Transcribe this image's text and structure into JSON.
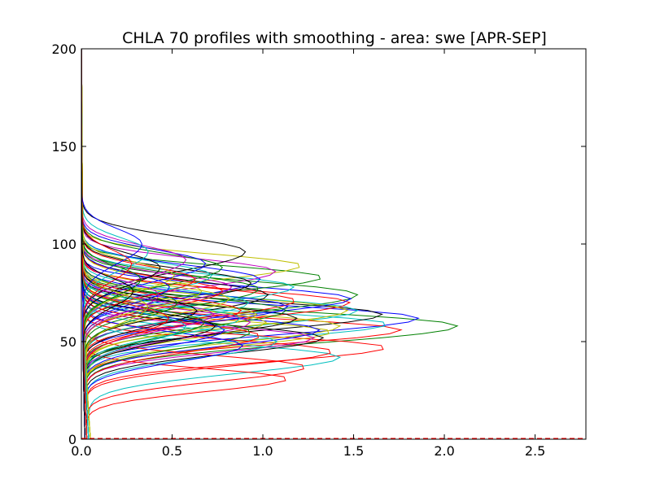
{
  "chart_data": {
    "type": "line",
    "title": "CHLA 70 profiles with smoothing - area: swe [APR-SEP]",
    "xlabel": "",
    "ylabel": "",
    "xlim": [
      0,
      2.78
    ],
    "ylim": [
      0,
      200
    ],
    "x_ticks": [
      0.0,
      0.5,
      1.0,
      1.5,
      2.0,
      2.5
    ],
    "x_tick_labels": [
      "0.0",
      "0.5",
      "1.0",
      "1.5",
      "2.0",
      "2.5"
    ],
    "y_ticks": [
      0,
      50,
      100,
      150,
      200
    ],
    "y_tick_labels": [
      "0",
      "50",
      "100",
      "150",
      "200"
    ],
    "grid": false,
    "legend": "none",
    "profile_count": 70,
    "palette": [
      "#0000ff",
      "#008000",
      "#ff0000",
      "#00bfbf",
      "#bf00bf",
      "#bfbf00",
      "#000000"
    ],
    "series": [
      {
        "color": "#008000",
        "peak_x": 2.09,
        "peak_y": 58,
        "width": 11,
        "base": 0.03
      },
      {
        "color": "#0000ff",
        "peak_x": 1.87,
        "peak_y": 62,
        "width": 10,
        "base": 0.02
      },
      {
        "color": "#ff0000",
        "peak_x": 1.78,
        "peak_y": 56,
        "width": 9,
        "base": 0.03
      },
      {
        "color": "#00bfbf",
        "peak_x": 1.72,
        "peak_y": 59,
        "width": 9,
        "base": 0.05
      },
      {
        "color": "#ff0000",
        "peak_x": 1.7,
        "peak_y": 47,
        "width": 9,
        "base": 0.04
      },
      {
        "color": "#000000",
        "peak_x": 1.67,
        "peak_y": 64,
        "width": 10,
        "base": 0.02
      },
      {
        "color": "#008000",
        "peak_x": 1.55,
        "peak_y": 74,
        "width": 11,
        "base": 0.04
      },
      {
        "color": "#00bfbf",
        "peak_x": 1.55,
        "peak_y": 66,
        "width": 10,
        "base": 0.04
      },
      {
        "color": "#ff0000",
        "peak_x": 1.5,
        "peak_y": 70,
        "width": 10,
        "base": 0.03
      },
      {
        "color": "#bfbf00",
        "peak_x": 1.5,
        "peak_y": 66,
        "width": 10,
        "base": 0.05
      },
      {
        "color": "#0000ff",
        "peak_x": 1.5,
        "peak_y": 72,
        "width": 10,
        "base": 0.02
      },
      {
        "color": "#00bfbf",
        "peak_x": 1.45,
        "peak_y": 42,
        "width": 10,
        "base": 0.05
      },
      {
        "color": "#bfbf00",
        "peak_x": 1.45,
        "peak_y": 58,
        "width": 10,
        "base": 0.04
      },
      {
        "color": "#ff0000",
        "peak_x": 1.4,
        "peak_y": 45,
        "width": 9,
        "base": 0.03
      },
      {
        "color": "#008000",
        "peak_x": 1.35,
        "peak_y": 83,
        "width": 9,
        "base": 0.03
      },
      {
        "color": "#bfbf00",
        "peak_x": 1.4,
        "peak_y": 55,
        "width": 9,
        "base": 0.04
      },
      {
        "color": "#000000",
        "peak_x": 1.35,
        "peak_y": 52,
        "width": 10,
        "base": 0.03
      },
      {
        "color": "#0000ff",
        "peak_x": 1.33,
        "peak_y": 56,
        "width": 10,
        "base": 0.03
      },
      {
        "color": "#bf00bf",
        "peak_x": 1.3,
        "peak_y": 52,
        "width": 9,
        "base": 0.03
      },
      {
        "color": "#ff0000",
        "peak_x": 1.25,
        "peak_y": 37,
        "width": 9,
        "base": 0.03
      },
      {
        "color": "#bfbf00",
        "peak_x": 1.25,
        "peak_y": 89,
        "width": 9,
        "base": 0.05
      },
      {
        "color": "#ff0000",
        "peak_x": 1.2,
        "peak_y": 71,
        "width": 10,
        "base": 0.03
      },
      {
        "color": "#00bfbf",
        "peak_x": 1.2,
        "peak_y": 78,
        "width": 10,
        "base": 0.04
      },
      {
        "color": "#000000",
        "peak_x": 1.2,
        "peak_y": 62,
        "width": 10,
        "base": 0.02
      },
      {
        "color": "#0000ff",
        "peak_x": 1.15,
        "peak_y": 68,
        "width": 10,
        "base": 0.02
      },
      {
        "color": "#ff0000",
        "peak_x": 1.15,
        "peak_y": 31,
        "width": 8,
        "base": 0.03
      },
      {
        "color": "#008000",
        "peak_x": 1.15,
        "peak_y": 66,
        "width": 10,
        "base": 0.03
      },
      {
        "color": "#bf00bf",
        "peak_x": 1.1,
        "peak_y": 86,
        "width": 10,
        "base": 0.04
      },
      {
        "color": "#00bfbf",
        "peak_x": 1.1,
        "peak_y": 50,
        "width": 10,
        "base": 0.04
      },
      {
        "color": "#000000",
        "peak_x": 1.05,
        "peak_y": 74,
        "width": 11,
        "base": 0.03
      },
      {
        "color": "#bfbf00",
        "peak_x": 1.05,
        "peak_y": 60,
        "width": 10,
        "base": 0.05
      },
      {
        "color": "#0000ff",
        "peak_x": 1.0,
        "peak_y": 82,
        "width": 11,
        "base": 0.02
      },
      {
        "color": "#bfbf00",
        "peak_x": 1.0,
        "peak_y": 64,
        "width": 10,
        "base": 0.05
      },
      {
        "color": "#008000",
        "peak_x": 1.0,
        "peak_y": 77,
        "width": 11,
        "base": 0.03
      },
      {
        "color": "#ff0000",
        "peak_x": 1.0,
        "peak_y": 53,
        "width": 10,
        "base": 0.03
      },
      {
        "color": "#00bfbf",
        "peak_x": 0.95,
        "peak_y": 70,
        "width": 10,
        "base": 0.04
      },
      {
        "color": "#bf00bf",
        "peak_x": 0.95,
        "peak_y": 60,
        "width": 10,
        "base": 0.03
      },
      {
        "color": "#008000",
        "peak_x": 0.95,
        "peak_y": 55,
        "width": 10,
        "base": 0.03
      },
      {
        "color": "#000000",
        "peak_x": 0.95,
        "peak_y": 80,
        "width": 11,
        "base": 0.02
      },
      {
        "color": "#0000ff",
        "peak_x": 0.9,
        "peak_y": 48,
        "width": 10,
        "base": 0.02
      },
      {
        "color": "#00bfbf",
        "peak_x": 0.9,
        "peak_y": 62,
        "width": 10,
        "base": 0.04
      },
      {
        "color": "#ff0000",
        "peak_x": 0.9,
        "peak_y": 66,
        "width": 10,
        "base": 0.03
      },
      {
        "color": "#000000",
        "peak_x": 0.92,
        "peak_y": 96,
        "width": 12,
        "base": 0.02
      },
      {
        "color": "#bfbf00",
        "peak_x": 0.85,
        "peak_y": 72,
        "width": 10,
        "base": 0.05
      },
      {
        "color": "#bf00bf",
        "peak_x": 0.85,
        "peak_y": 78,
        "width": 10,
        "base": 0.03
      },
      {
        "color": "#0000ff",
        "peak_x": 0.8,
        "peak_y": 56,
        "width": 10,
        "base": 0.02
      },
      {
        "color": "#008000",
        "peak_x": 0.8,
        "peak_y": 88,
        "width": 11,
        "base": 0.03
      },
      {
        "color": "#ff0000",
        "peak_x": 0.8,
        "peak_y": 76,
        "width": 10,
        "base": 0.03
      },
      {
        "color": "#000000",
        "peak_x": 0.75,
        "peak_y": 58,
        "width": 10,
        "base": 0.02
      },
      {
        "color": "#00bfbf",
        "peak_x": 0.75,
        "peak_y": 84,
        "width": 10,
        "base": 0.04
      },
      {
        "color": "#bf00bf",
        "peak_x": 0.75,
        "peak_y": 64,
        "width": 10,
        "base": 0.03
      },
      {
        "color": "#bfbf00",
        "peak_x": 0.7,
        "peak_y": 76,
        "width": 10,
        "base": 0.05
      },
      {
        "color": "#008000",
        "peak_x": 0.7,
        "peak_y": 60,
        "width": 10,
        "base": 0.03
      },
      {
        "color": "#0000ff",
        "peak_x": 0.7,
        "peak_y": 90,
        "width": 11,
        "base": 0.02
      },
      {
        "color": "#ff0000",
        "peak_x": 0.65,
        "peak_y": 82,
        "width": 10,
        "base": 0.03
      },
      {
        "color": "#000000",
        "peak_x": 0.65,
        "peak_y": 66,
        "width": 10,
        "base": 0.02
      },
      {
        "color": "#bf00bf",
        "peak_x": 0.6,
        "peak_y": 92,
        "width": 11,
        "base": 0.03
      },
      {
        "color": "#00bfbf",
        "peak_x": 0.6,
        "peak_y": 58,
        "width": 10,
        "base": 0.04
      },
      {
        "color": "#bfbf00",
        "peak_x": 0.55,
        "peak_y": 84,
        "width": 10,
        "base": 0.05
      },
      {
        "color": "#008000",
        "peak_x": 0.55,
        "peak_y": 70,
        "width": 10,
        "base": 0.03
      },
      {
        "color": "#0000ff",
        "peak_x": 0.5,
        "peak_y": 78,
        "width": 10,
        "base": 0.02
      },
      {
        "color": "#ff0000",
        "peak_x": 0.5,
        "peak_y": 62,
        "width": 10,
        "base": 0.03
      },
      {
        "color": "#000000",
        "peak_x": 0.45,
        "peak_y": 88,
        "width": 11,
        "base": 0.02
      },
      {
        "color": "#bf00bf",
        "peak_x": 0.45,
        "peak_y": 74,
        "width": 10,
        "base": 0.03
      },
      {
        "color": "#00bfbf",
        "peak_x": 0.4,
        "peak_y": 96,
        "width": 11,
        "base": 0.04
      },
      {
        "color": "#bfbf00",
        "peak_x": 0.4,
        "peak_y": 68,
        "width": 10,
        "base": 0.05
      },
      {
        "color": "#008000",
        "peak_x": 0.35,
        "peak_y": 82,
        "width": 10,
        "base": 0.03
      },
      {
        "color": "#0000ff",
        "peak_x": 0.35,
        "peak_y": 100,
        "width": 12,
        "base": 0.02
      },
      {
        "color": "#ff0000",
        "peak_x": 0.3,
        "peak_y": 90,
        "width": 11,
        "base": 0.03
      },
      {
        "color": "#000000",
        "peak_x": 0.3,
        "peak_y": 76,
        "width": 10,
        "base": 0.02
      }
    ]
  }
}
